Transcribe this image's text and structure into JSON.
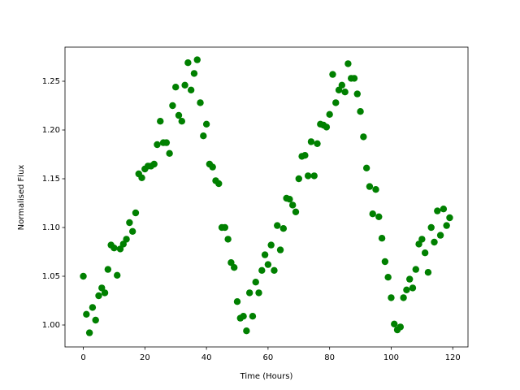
{
  "chart_data": {
    "type": "scatter",
    "xlabel": "Time (Hours)",
    "ylabel": "Normalised Flux",
    "color": "#008000",
    "x": [
      0,
      1,
      2,
      3,
      4,
      5,
      6,
      7,
      8,
      9,
      10,
      11,
      12,
      13,
      14,
      15,
      16,
      17,
      18,
      19,
      20,
      21,
      22,
      23,
      24,
      25,
      26,
      27,
      28,
      29,
      30,
      31,
      32,
      33,
      34,
      35,
      36,
      37,
      38,
      39,
      40,
      41,
      42,
      43,
      44,
      45,
      46,
      47,
      48,
      49,
      50,
      51,
      52,
      53,
      54,
      55,
      56,
      57,
      58,
      59,
      60,
      61,
      62,
      63,
      64,
      65,
      66,
      67,
      68,
      69,
      70,
      71,
      72,
      73,
      74,
      75,
      76,
      77,
      78,
      79,
      80,
      81,
      82,
      83,
      84,
      85,
      86,
      87,
      88,
      89,
      90,
      91,
      92,
      93,
      94,
      95,
      96,
      97,
      98,
      99,
      100,
      101,
      102,
      103,
      104,
      105,
      106,
      107,
      108,
      109,
      110,
      111,
      112,
      113,
      114,
      115,
      116,
      117,
      118,
      119
    ],
    "values": [
      1.05,
      1.011,
      0.992,
      1.018,
      1.005,
      1.03,
      1.038,
      1.033,
      1.057,
      1.082,
      1.079,
      1.051,
      1.078,
      1.083,
      1.088,
      1.105,
      1.096,
      1.115,
      1.155,
      1.151,
      1.16,
      1.163,
      1.163,
      1.165,
      1.185,
      1.209,
      1.187,
      1.187,
      1.176,
      1.225,
      1.244,
      1.215,
      1.209,
      1.246,
      1.269,
      1.241,
      1.258,
      1.272,
      1.228,
      1.194,
      1.206,
      1.165,
      1.162,
      1.148,
      1.145,
      1.1,
      1.1,
      1.088,
      1.064,
      1.059,
      1.024,
      1.007,
      1.009,
      0.994,
      1.033,
      1.009,
      1.044,
      1.033,
      1.056,
      1.072,
      1.062,
      1.082,
      1.056,
      1.102,
      1.077,
      1.099,
      1.13,
      1.129,
      1.123,
      1.116,
      1.15,
      1.173,
      1.174,
      1.153,
      1.188,
      1.153,
      1.186,
      1.206,
      1.205,
      1.203,
      1.216,
      1.257,
      1.228,
      1.241,
      1.246,
      1.239,
      1.268,
      1.253,
      1.253,
      1.237,
      1.219,
      1.193,
      1.161,
      1.142,
      1.114,
      1.139,
      1.111,
      1.089,
      1.065,
      1.049,
      1.028,
      1.001,
      0.995,
      0.998,
      1.028,
      1.036,
      1.047,
      1.038,
      1.057,
      1.083,
      1.088,
      1.074,
      1.054,
      1.1,
      1.085,
      1.117,
      1.092,
      1.119,
      1.102,
      1.11
    ],
    "xlim": [
      -5.95,
      124.95
    ],
    "ylim": [
      0.9775,
      1.285
    ],
    "xticks": [
      0,
      20,
      40,
      60,
      80,
      100,
      120
    ],
    "yticks": [
      {
        "value": 1.0,
        "label": "1.00"
      },
      {
        "value": 1.05,
        "label": "1.05"
      },
      {
        "value": 1.1,
        "label": "1.10"
      },
      {
        "value": 1.15,
        "label": "1.15"
      },
      {
        "value": 1.2,
        "label": "1.20"
      },
      {
        "value": 1.25,
        "label": "1.25"
      }
    ]
  }
}
